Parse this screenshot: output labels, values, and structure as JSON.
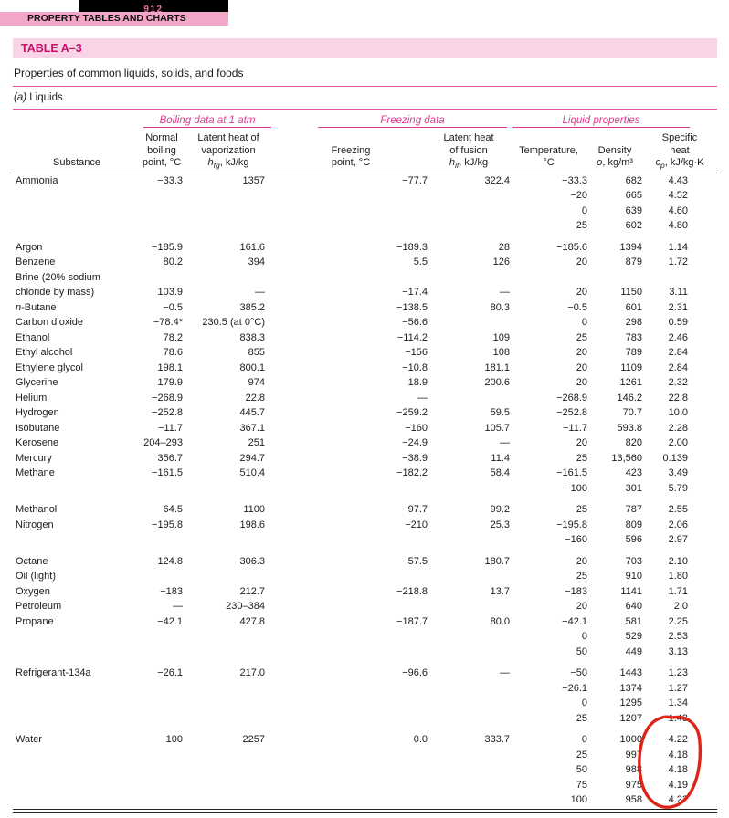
{
  "colors": {
    "accent_pink": "#e03a92",
    "rule_pink": "#e0559d",
    "band_bg": "#f8d4e6",
    "band_text": "#c90f6a",
    "topbar_bg": "#f3a7c8",
    "pagenum_text": "#ef6fa9",
    "annotation_red": "#dc2417"
  },
  "page": {
    "page_number": "912",
    "running_header": "PROPERTY TABLES AND CHARTS",
    "table_label": "TABLE A–3",
    "table_caption": "Properties of common liquids, solids, and foods",
    "part_label_prefix": "(a)",
    "part_label_name": "Liquids"
  },
  "table": {
    "col_ids": [
      "substance",
      "nbp",
      "hfg",
      "fp",
      "hif",
      "temp",
      "density",
      "cp"
    ],
    "groups": [
      {
        "label": "Boiling data at 1 atm",
        "span": 2
      },
      {
        "label": "Freezing data",
        "span": 2
      },
      {
        "label": "Liquid properties",
        "span": 3
      }
    ],
    "headers": {
      "substance": "Substance",
      "nbp": {
        "line1": "Normal",
        "line2": "boiling",
        "line3": "point, °C"
      },
      "hfg": {
        "line1": "Latent heat of",
        "line2": "vaporization",
        "sym": "h",
        "sym_sub": "fg",
        "unit": ", kJ/kg"
      },
      "fp": {
        "line1": "Freezing",
        "line2": "point, °C"
      },
      "hif": {
        "line1": "Latent heat",
        "line2": "of fusion",
        "sym": "h",
        "sym_sub": "if",
        "unit": ", kJ/kg"
      },
      "temp": {
        "line1": "Temperature,",
        "line2": "°C"
      },
      "density": {
        "line1": "Density",
        "sym": "ρ",
        "unit": ", kg/m³"
      },
      "cp": {
        "line1": "Specific",
        "line2": "heat",
        "sym": "c",
        "sym_sub": "p",
        "unit": ", kJ/kg·K"
      }
    },
    "rows": [
      {
        "c": [
          "Ammonia",
          "−33.3",
          "1357",
          "−77.7",
          "322.4",
          "−33.3",
          "682",
          "4.43"
        ]
      },
      {
        "c": [
          "",
          "",
          "",
          "",
          "",
          "−20",
          "665",
          "4.52"
        ]
      },
      {
        "c": [
          "",
          "",
          "",
          "",
          "",
          "0",
          "639",
          "4.60"
        ]
      },
      {
        "c": [
          "",
          "",
          "",
          "",
          "",
          "25",
          "602",
          "4.80"
        ]
      },
      {
        "spacer": true
      },
      {
        "c": [
          "Argon",
          "−185.9",
          "161.6",
          "−189.3",
          "28",
          "−185.6",
          "1394",
          "1.14"
        ]
      },
      {
        "c": [
          "Benzene",
          "80.2",
          "394",
          "5.5",
          "126",
          "20",
          "879",
          "1.72"
        ]
      },
      {
        "c": [
          "Brine (20% sodium",
          "",
          "",
          "",
          "",
          "",
          "",
          ""
        ]
      },
      {
        "c": [
          "chloride by mass)",
          "103.9",
          "—",
          "−17.4",
          "—",
          "20",
          "1150",
          "3.11"
        ]
      },
      {
        "c": [
          {
            "parts": [
              {
                "t": "n",
                "i": true
              },
              {
                "t": "-Butane"
              }
            ]
          },
          "−0.5",
          "385.2",
          "−138.5",
          "80.3",
          "−0.5",
          "601",
          "2.31"
        ]
      },
      {
        "c": [
          "Carbon dioxide",
          "−78.4*",
          "230.5 (at 0°C)",
          "−56.6",
          "",
          "0",
          "298",
          "0.59"
        ]
      },
      {
        "c": [
          "Ethanol",
          "78.2",
          "838.3",
          "−114.2",
          "109",
          "25",
          "783",
          "2.46"
        ]
      },
      {
        "c": [
          "Ethyl alcohol",
          "78.6",
          "855",
          "−156",
          "108",
          "20",
          "789",
          "2.84"
        ]
      },
      {
        "c": [
          "Ethylene glycol",
          "198.1",
          "800.1",
          "−10.8",
          "181.1",
          "20",
          "1109",
          "2.84"
        ]
      },
      {
        "c": [
          "Glycerine",
          "179.9",
          "974",
          "18.9",
          "200.6",
          "20",
          "1261",
          "2.32"
        ]
      },
      {
        "c": [
          "Helium",
          "−268.9",
          "22.8",
          "—",
          "",
          "−268.9",
          "146.2",
          "22.8"
        ]
      },
      {
        "c": [
          "Hydrogen",
          "−252.8",
          "445.7",
          "−259.2",
          "59.5",
          "−252.8",
          "70.7",
          "10.0"
        ]
      },
      {
        "c": [
          "Isobutane",
          "−11.7",
          "367.1",
          "−160",
          "105.7",
          "−11.7",
          "593.8",
          "2.28"
        ]
      },
      {
        "c": [
          "Kerosene",
          "204–293",
          "251",
          "−24.9",
          "—",
          "20",
          "820",
          "2.00"
        ]
      },
      {
        "c": [
          "Mercury",
          "356.7",
          "294.7",
          "−38.9",
          "11.4",
          "25",
          "13,560",
          "0.139"
        ]
      },
      {
        "c": [
          "Methane",
          "−161.5",
          "510.4",
          "−182.2",
          "58.4",
          "−161.5",
          "423",
          "3.49"
        ]
      },
      {
        "c": [
          "",
          "",
          "",
          "",
          "",
          "−100",
          "301",
          "5.79"
        ]
      },
      {
        "spacer": true
      },
      {
        "c": [
          "Methanol",
          "64.5",
          "1100",
          "−97.7",
          "99.2",
          "25",
          "787",
          "2.55"
        ]
      },
      {
        "c": [
          "Nitrogen",
          "−195.8",
          "198.6",
          "−210",
          "25.3",
          "−195.8",
          "809",
          "2.06"
        ]
      },
      {
        "c": [
          "",
          "",
          "",
          "",
          "",
          "−160",
          "596",
          "2.97"
        ]
      },
      {
        "spacer": true
      },
      {
        "c": [
          "Octane",
          "124.8",
          "306.3",
          "−57.5",
          "180.7",
          "20",
          "703",
          "2.10"
        ]
      },
      {
        "c": [
          "Oil (light)",
          "",
          "",
          "",
          "",
          "25",
          "910",
          "1.80"
        ]
      },
      {
        "c": [
          "Oxygen",
          "−183",
          "212.7",
          "−218.8",
          "13.7",
          "−183",
          "1141",
          "1.71"
        ]
      },
      {
        "c": [
          "Petroleum",
          "—",
          "230–384",
          "",
          "",
          "20",
          "640",
          "2.0"
        ]
      },
      {
        "c": [
          "Propane",
          "−42.1",
          "427.8",
          "−187.7",
          "80.0",
          "−42.1",
          "581",
          "2.25"
        ]
      },
      {
        "c": [
          "",
          "",
          "",
          "",
          "",
          "0",
          "529",
          "2.53"
        ]
      },
      {
        "c": [
          "",
          "",
          "",
          "",
          "",
          "50",
          "449",
          "3.13"
        ]
      },
      {
        "spacer": true
      },
      {
        "c": [
          "Refrigerant-134a",
          "−26.1",
          "217.0",
          "−96.6",
          "—",
          "−50",
          "1443",
          "1.23"
        ]
      },
      {
        "c": [
          "",
          "",
          "",
          "",
          "",
          "−26.1",
          "1374",
          "1.27"
        ]
      },
      {
        "c": [
          "",
          "",
          "",
          "",
          "",
          "0",
          "1295",
          "1.34"
        ]
      },
      {
        "c": [
          "",
          "",
          "",
          "",
          "",
          "25",
          "1207",
          "1.43"
        ]
      },
      {
        "spacer": true
      },
      {
        "c": [
          "Water",
          "100",
          "2257",
          "0.0",
          "333.7",
          "0",
          "1000",
          "4.22"
        ]
      },
      {
        "c": [
          "",
          "",
          "",
          "",
          "",
          "25",
          "997",
          "4.18"
        ]
      },
      {
        "c": [
          "",
          "",
          "",
          "",
          "",
          "50",
          "988",
          "4.18"
        ]
      },
      {
        "c": [
          "",
          "",
          "",
          "",
          "",
          "75",
          "975",
          "4.19"
        ]
      },
      {
        "c": [
          "",
          "",
          "",
          "",
          "",
          "100",
          "958",
          "4.22"
        ]
      }
    ]
  },
  "annotation": {
    "shape": "hand-drawn-ellipse",
    "color": "#dc2417",
    "circled": "Water specific heat values"
  }
}
